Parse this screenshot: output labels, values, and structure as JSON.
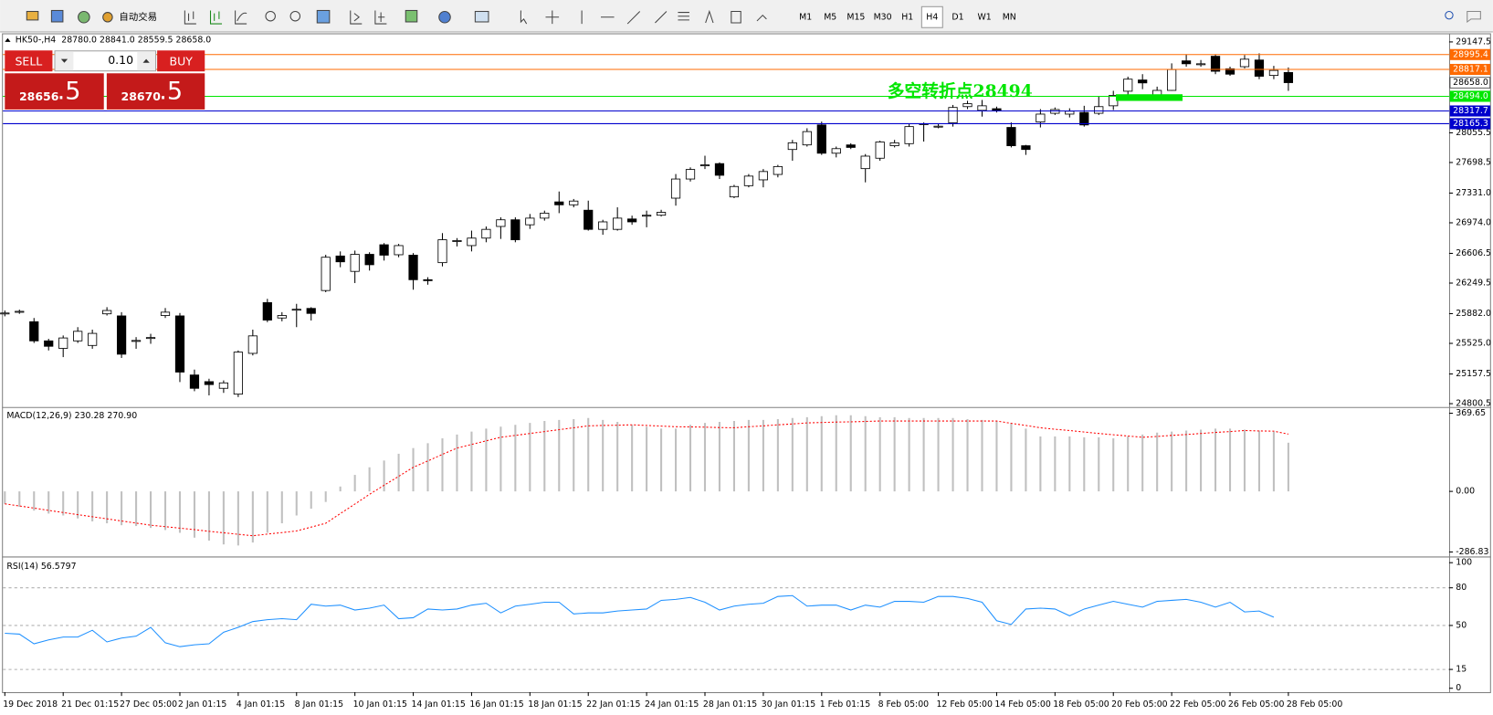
{
  "toolbar": {
    "auto_trade": "自动交易",
    "timeframes": [
      "M1",
      "M5",
      "M15",
      "M30",
      "H1",
      "H4",
      "D1",
      "W1",
      "MN"
    ],
    "active_timeframe_index": 5
  },
  "trade_panel": {
    "sell": "SELL",
    "lot": "0.10",
    "buy": "BUY",
    "sell_price": "28656",
    "sell_price_fraction": ".5",
    "buy_price": "28670",
    "buy_price_fraction": ".5"
  },
  "price_chart": {
    "header": "HK50-,H4  28780.0 28841.0 28559.5 28658.0",
    "ylim": [
      24766,
      29228
    ],
    "yticks": [
      29147.5,
      28055.5,
      27698.5,
      {
        "value": 27331,
        "label": "27331.0"
      },
      {
        "value": 26974,
        "label": "26974.0"
      },
      26606.5,
      26249.5,
      {
        "value": 25882,
        "label": "25882.0"
      },
      {
        "value": 25525,
        "label": "25525.0"
      },
      25157.5,
      24800.5
    ],
    "bull_color": "#ffffff",
    "bear_color": "#000000",
    "candles": [
      [
        25880,
        25920,
        25850,
        25890
      ],
      [
        25905,
        25930,
        25880,
        25910
      ],
      [
        25785,
        25830,
        25530,
        25555
      ],
      [
        25555,
        25580,
        25440,
        25490
      ],
      [
        25465,
        25620,
        25360,
        25590
      ],
      [
        25555,
        25720,
        25530,
        25670
      ],
      [
        25500,
        25690,
        25460,
        25645
      ],
      [
        25880,
        25960,
        25860,
        25920
      ],
      [
        25855,
        25900,
        25350,
        25395
      ],
      [
        25555,
        25600,
        25460,
        25560
      ],
      [
        25590,
        25640,
        25520,
        25595
      ],
      [
        25860,
        25950,
        25830,
        25900
      ],
      [
        25855,
        25890,
        25060,
        25180
      ],
      [
        25145,
        25210,
        24950,
        24985
      ],
      [
        25065,
        25100,
        24900,
        25030
      ],
      [
        24985,
        25080,
        24930,
        25050
      ],
      [
        24915,
        25440,
        24880,
        25420
      ],
      [
        25405,
        25690,
        25380,
        25615
      ],
      [
        26015,
        26060,
        25780,
        25805
      ],
      [
        25830,
        25900,
        25790,
        25860
      ],
      [
        25930,
        26000,
        25720,
        25935
      ],
      [
        25945,
        25960,
        25800,
        25885
      ],
      [
        26160,
        26590,
        26140,
        26560
      ],
      [
        26575,
        26630,
        26440,
        26505
      ],
      [
        26390,
        26640,
        26250,
        26595
      ],
      [
        26595,
        26620,
        26400,
        26470
      ],
      [
        26710,
        26730,
        26520,
        26585
      ],
      [
        26590,
        26720,
        26560,
        26700
      ],
      [
        26585,
        26610,
        26170,
        26290
      ],
      [
        26290,
        26320,
        26230,
        26285
      ],
      [
        26495,
        26850,
        26450,
        26770
      ],
      [
        26750,
        26790,
        26690,
        26760
      ],
      [
        26700,
        26880,
        26630,
        26790
      ],
      [
        26790,
        26930,
        26740,
        26895
      ],
      [
        26930,
        27040,
        26780,
        27010
      ],
      [
        27010,
        27040,
        26740,
        26770
      ],
      [
        26950,
        27080,
        26900,
        27030
      ],
      [
        27030,
        27120,
        27000,
        27090
      ],
      [
        27225,
        27350,
        27090,
        27190
      ],
      [
        27190,
        27260,
        27160,
        27235
      ],
      [
        27125,
        27240,
        26880,
        26895
      ],
      [
        26895,
        27010,
        26830,
        26985
      ],
      [
        26895,
        27160,
        26880,
        27030
      ],
      [
        27020,
        27060,
        26950,
        26985
      ],
      [
        27060,
        27120,
        26920,
        27065
      ],
      [
        27065,
        27130,
        27050,
        27100
      ],
      [
        27270,
        27560,
        27180,
        27500
      ],
      [
        27500,
        27640,
        27470,
        27615
      ],
      [
        27670,
        27780,
        27620,
        27670
      ],
      [
        27685,
        27700,
        27500,
        27545
      ],
      [
        27285,
        27430,
        27270,
        27410
      ],
      [
        27420,
        27560,
        27400,
        27535
      ],
      [
        27490,
        27620,
        27400,
        27590
      ],
      [
        27555,
        27670,
        27520,
        27650
      ],
      [
        27855,
        27970,
        27720,
        27935
      ],
      [
        27910,
        28110,
        27890,
        28070
      ],
      [
        28150,
        28190,
        27790,
        27810
      ],
      [
        27810,
        27890,
        27760,
        27865
      ],
      [
        27910,
        27930,
        27860,
        27880
      ],
      [
        27625,
        27800,
        27460,
        27775
      ],
      [
        27750,
        27960,
        27720,
        27945
      ],
      [
        27900,
        27970,
        27880,
        27935
      ],
      [
        27925,
        28160,
        27890,
        28130
      ],
      [
        28160,
        28180,
        27950,
        28165
      ],
      [
        28130,
        28160,
        28110,
        28135
      ],
      [
        28175,
        28390,
        28130,
        28360
      ],
      [
        28370,
        28440,
        28340,
        28405
      ],
      [
        28325,
        28450,
        28250,
        28380
      ],
      [
        28345,
        28370,
        28300,
        28325
      ],
      [
        28120,
        28180,
        27880,
        27900
      ],
      [
        27900,
        27910,
        27790,
        27855
      ],
      [
        28185,
        28340,
        28120,
        28280
      ],
      [
        28290,
        28360,
        28270,
        28335
      ],
      [
        28280,
        28350,
        28240,
        28315
      ],
      [
        28300,
        28380,
        28130,
        28150
      ],
      [
        28290,
        28490,
        28270,
        28370
      ],
      [
        28380,
        28560,
        28330,
        28505
      ],
      [
        28555,
        28730,
        28510,
        28700
      ],
      [
        28690,
        28760,
        28580,
        28655
      ],
      [
        28510,
        28610,
        28480,
        28565
      ],
      [
        28565,
        28890,
        28560,
        28815
      ],
      [
        28920,
        29000,
        28850,
        28885
      ],
      [
        28880,
        28930,
        28850,
        28885
      ],
      [
        28975,
        29000,
        28760,
        28795
      ],
      [
        28825,
        28850,
        28740,
        28760
      ],
      [
        28850,
        28990,
        28830,
        28940
      ],
      [
        28930,
        29010,
        28700,
        28735
      ],
      [
        28745,
        28860,
        28700,
        28805
      ],
      [
        28780,
        28841,
        28559.5,
        28658
      ]
    ],
    "time_labels": [
      "19 Dec 2018",
      null,
      null,
      null,
      "21 Dec 01:15",
      null,
      null,
      null,
      "27 Dec 05:00",
      null,
      null,
      null,
      "2 Jan 01:15",
      null,
      null,
      null,
      "4 Jan 01:15",
      null,
      null,
      null,
      "8 Jan 01:15",
      null,
      null,
      null,
      "10 Jan 01:15",
      null,
      null,
      null,
      "14 Jan 01:15",
      null,
      null,
      null,
      "16 Jan 01:15",
      null,
      null,
      null,
      "18 Jan 01:15",
      null,
      null,
      null,
      "22 Jan 01:15",
      null,
      null,
      null,
      "24 Jan 01:15",
      null,
      null,
      null,
      "28 Jan 01:15",
      null,
      null,
      null,
      "30 Jan 01:15",
      null,
      null,
      null,
      "1 Feb 01:15",
      null,
      null,
      null,
      "8 Feb 05:00",
      null,
      null,
      null,
      "12 Feb 05:00",
      null,
      null,
      null,
      "14 Feb 05:00",
      null,
      null,
      null,
      "18 Feb 05:00",
      null,
      null,
      null,
      "20 Feb 05:00",
      null,
      null,
      null,
      "22 Feb 05:00",
      null,
      null,
      null,
      "26 Feb 05:00",
      null,
      null,
      null,
      "28 Feb 05:00"
    ],
    "price_lines": [
      {
        "price": 28995.4,
        "color": "#ff6a00",
        "text_color": "#ffffff",
        "line": true
      },
      {
        "price": 28817.1,
        "color": "#ff6a00",
        "text_color": "#ffffff",
        "line": true
      },
      {
        "price": {
          "value": 28658,
          "label": "28658.0"
        },
        "color": "#ffffff",
        "text_color": "#000000",
        "line": false
      },
      {
        "price": {
          "value": 28494,
          "label": "28494.0"
        },
        "color": "#00e600",
        "text_color": "#ffffff",
        "line": true
      },
      {
        "price": 28317.7,
        "color": "#0000cd",
        "text_color": "#ffffff",
        "line": true
      },
      {
        "price": 28165.3,
        "color": "#0000cd",
        "text_color": "#ffffff",
        "line": true
      }
    ],
    "annotation": "多空转折点28494"
  },
  "macd": {
    "label": "MACD(12,26,9) 230.28 270.90",
    "ylim": [
      -305.8,
      392.5
    ],
    "yticks": [
      369.65,
      {
        "value": 0,
        "label": "0.00"
      },
      -286.83
    ],
    "hist_color": "#c0c0c0",
    "signal_color": "#ff0000",
    "histogram": [
      -59,
      -73,
      -91,
      -105,
      -114,
      -128,
      -142,
      -151,
      -160,
      -164,
      -173,
      -183,
      -196,
      -219,
      -233,
      -251,
      -256,
      -242,
      -196,
      -151,
      -114,
      -82,
      -50,
      23,
      78,
      114,
      146,
      178,
      205,
      228,
      251,
      269,
      283,
      297,
      306,
      315,
      324,
      333,
      338,
      342,
      347,
      338,
      329,
      315,
      306,
      297,
      297,
      315,
      324,
      329,
      333,
      338,
      338,
      342,
      347,
      351,
      356,
      360,
      360,
      356,
      351,
      351,
      347,
      347,
      347,
      347,
      342,
      338,
      333,
      324,
      297,
      260,
      260,
      260,
      256,
      256,
      251,
      260,
      269,
      278,
      283,
      288,
      292,
      297,
      297,
      292,
      288,
      283,
      230.28
    ],
    "signal": [
      -59,
      -69,
      -79,
      -90,
      -100,
      -110,
      -120,
      -130,
      -140,
      -150,
      -160,
      -167,
      -174,
      -181,
      -189,
      -196,
      -203,
      -210,
      -202,
      -195,
      -187,
      -169,
      -151,
      -105,
      -60,
      -14,
      29,
      71,
      114,
      144,
      175,
      205,
      222,
      239,
      256,
      265,
      274,
      283,
      292,
      301,
      310,
      312,
      313,
      315,
      312,
      309,
      306,
      305,
      304,
      302,
      301,
      306,
      310,
      315,
      319,
      324,
      326,
      328,
      329,
      331,
      333,
      333,
      333,
      333,
      333,
      333,
      333,
      333,
      333,
      322,
      312,
      301,
      294,
      288,
      281,
      274,
      268,
      262,
      256,
      260,
      265,
      269,
      274,
      279,
      283,
      288,
      286,
      285,
      270.9
    ]
  },
  "rsi": {
    "label": "RSI(14) 56.5797",
    "ylim": [
      -3.1,
      103.8
    ],
    "yticks": [
      100,
      80,
      50,
      15,
      0
    ],
    "levels": [
      80,
      50,
      15
    ],
    "color": "#1e90ff",
    "values": [
      43.8,
      43.1,
      35.4,
      38.5,
      40.8,
      40.8,
      46.2,
      36.9,
      40,
      41.5,
      48.5,
      36.2,
      33.1,
      34.6,
      35.4,
      44.6,
      48.5,
      53.1,
      54.6,
      55.4,
      54.6,
      66.9,
      65.4,
      66.2,
      62.3,
      63.8,
      66.2,
      55.4,
      56.2,
      63.1,
      62.3,
      63.1,
      66.2,
      67.7,
      60,
      65.4,
      66.9,
      68.5,
      68.5,
      59.2,
      60,
      60,
      61.5,
      62.3,
      63.1,
      70,
      70.8,
      72.3,
      68.5,
      62.3,
      65.4,
      66.9,
      67.7,
      73.1,
      73.8,
      65.4,
      66.2,
      66.2,
      62.3,
      66.2,
      64.6,
      69.2,
      69.2,
      68.5,
      73.1,
      73.1,
      71.5,
      68.5,
      53.8,
      50.8,
      63.1,
      63.8,
      63.1,
      57.7,
      63.1,
      66.2,
      69.2,
      66.9,
      64.6,
      69.2,
      70,
      70.8,
      68.5,
      64.6,
      68.5,
      60.8,
      61.5,
      56.5797
    ]
  }
}
